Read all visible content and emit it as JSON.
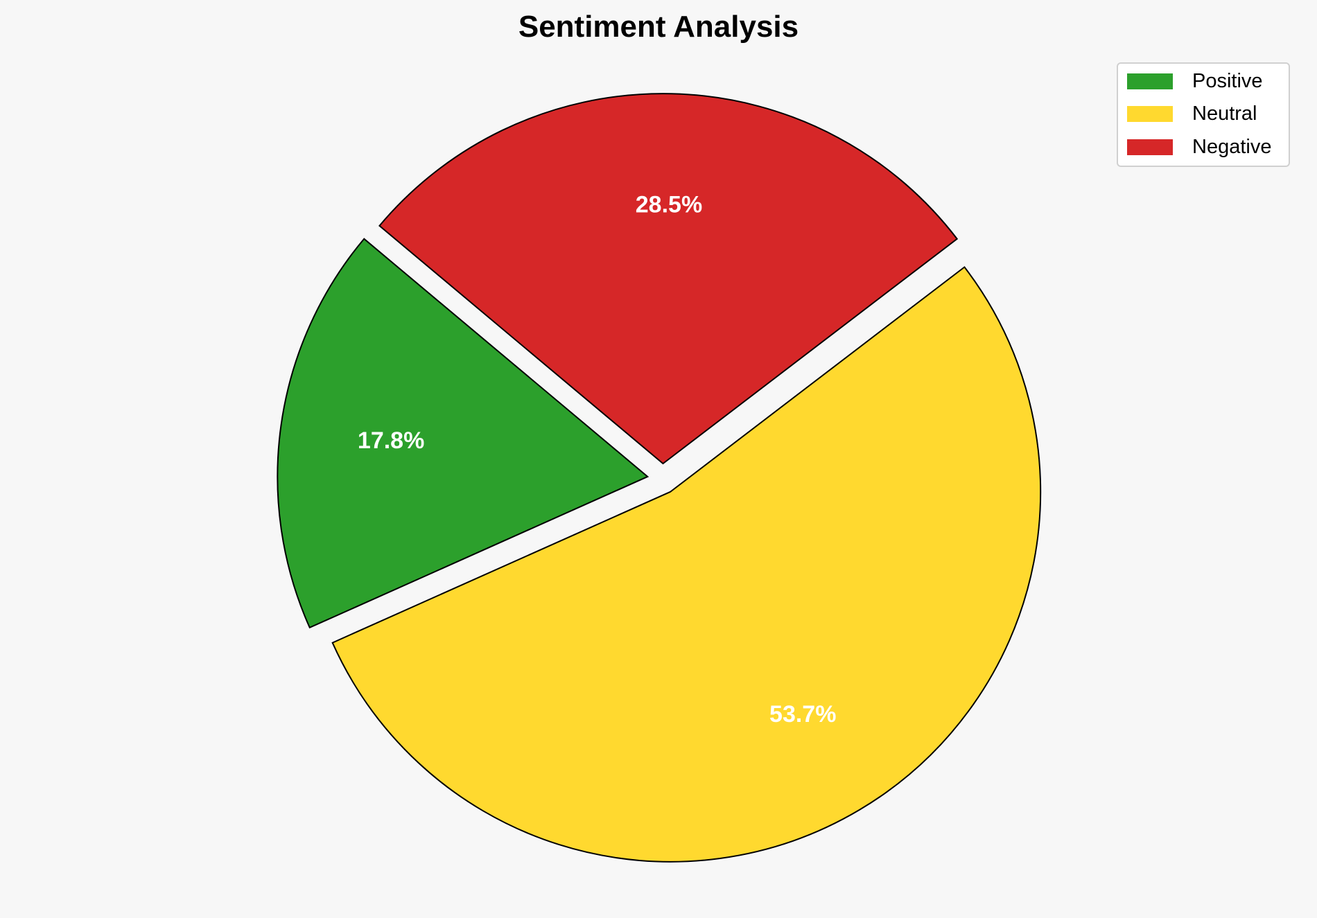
{
  "chart_data": {
    "type": "pie",
    "title": "Sentiment Analysis",
    "categories": [
      "Positive",
      "Neutral",
      "Negative"
    ],
    "values": [
      17.8,
      53.7,
      28.5
    ],
    "labels": [
      "17.8%",
      "53.7%",
      "28.5%"
    ],
    "colors": [
      "#2ca02c",
      "#ffd92f",
      "#d62728"
    ],
    "start_angle": 140,
    "counterclockwise": true,
    "explode": [
      0.05,
      0.05,
      0.05
    ],
    "legend_placement": "top-right"
  }
}
